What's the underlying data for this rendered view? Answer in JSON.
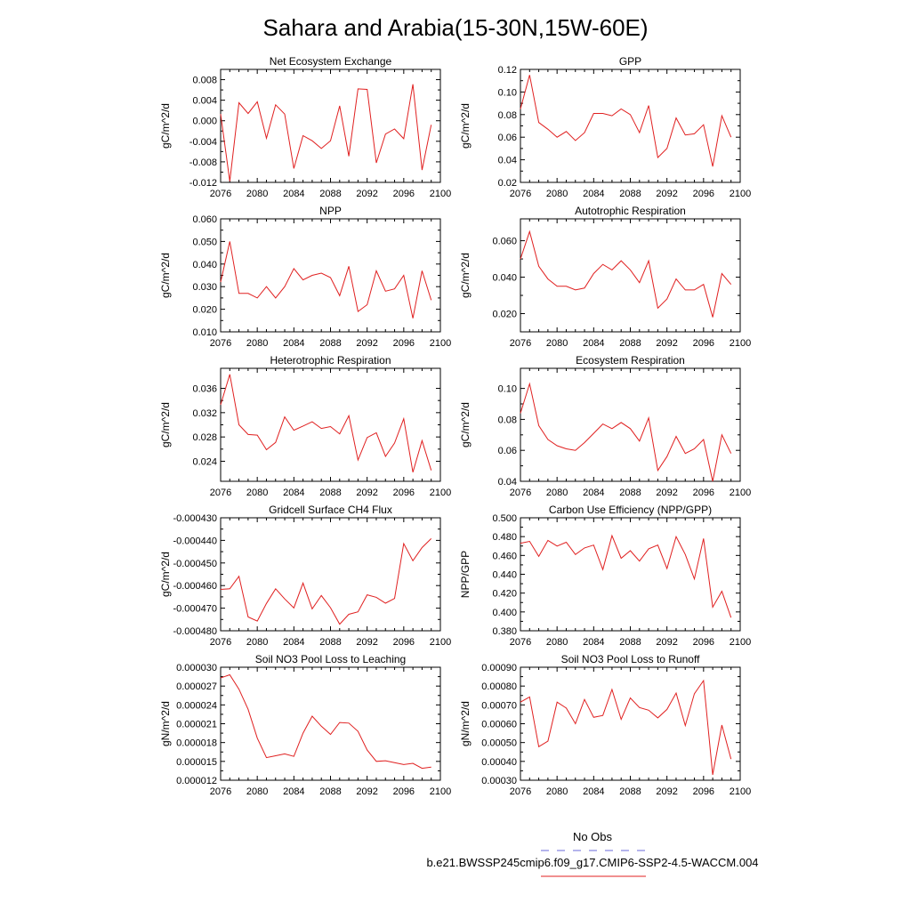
{
  "title": "Sahara and Arabia(15-30N,15W-60E)",
  "legend": {
    "obs_label": "No Obs",
    "obs_color": "#6a6ad8",
    "model_label": "b.e21.BWSSP245cmip6.f09_g17.CMIP6-SSP2-4.5-WACCM.004",
    "model_color": "#e02020"
  },
  "chart_data": [
    {
      "type": "line",
      "title": "Net Ecosystem Exchange",
      "ylabel": "gC/m^2/d",
      "xlim": [
        2076,
        2100
      ],
      "xticks": [
        "2076",
        "2080",
        "2084",
        "2088",
        "2092",
        "2096",
        "2100"
      ],
      "ylim": [
        -0.012,
        0.01
      ],
      "yticks": [
        "0.008",
        "0.004",
        "0.000",
        "-0.004",
        "-0.008",
        "-0.012"
      ],
      "series": [
        {
          "x": [
            2076,
            2077,
            2078,
            2079,
            2080,
            2081,
            2082,
            2083,
            2084,
            2085,
            2086,
            2087,
            2088,
            2089,
            2090,
            2091,
            2092,
            2093,
            2094,
            2095,
            2096,
            2097,
            2098,
            2099
          ],
          "y": [
            0.0013,
            -0.0118,
            0.0035,
            0.0014,
            0.0037,
            -0.0034,
            0.0031,
            0.0013,
            -0.0093,
            -0.0029,
            -0.0039,
            -0.0054,
            -0.0039,
            0.0029,
            -0.0069,
            0.0062,
            0.0061,
            -0.0082,
            -0.0026,
            -0.0016,
            -0.0035,
            0.0071,
            -0.0096,
            -0.0008
          ]
        }
      ]
    },
    {
      "type": "line",
      "title": "GPP",
      "ylabel": "gC/m^2/d",
      "xlim": [
        2076,
        2100
      ],
      "xticks": [
        "2076",
        "2080",
        "2084",
        "2088",
        "2092",
        "2096",
        "2100"
      ],
      "ylim": [
        0.02,
        0.12
      ],
      "yticks": [
        "0.12",
        "0.10",
        "0.08",
        "0.06",
        "0.04",
        "0.02"
      ],
      "series": [
        {
          "x": [
            2076,
            2077,
            2078,
            2079,
            2080,
            2081,
            2082,
            2083,
            2084,
            2085,
            2086,
            2087,
            2088,
            2089,
            2090,
            2091,
            2092,
            2093,
            2094,
            2095,
            2096,
            2097,
            2098,
            2099
          ],
          "y": [
            0.085,
            0.115,
            0.073,
            0.067,
            0.06,
            0.065,
            0.057,
            0.064,
            0.081,
            0.081,
            0.079,
            0.085,
            0.08,
            0.064,
            0.088,
            0.042,
            0.05,
            0.077,
            0.062,
            0.063,
            0.071,
            0.034,
            0.079,
            0.06
          ]
        }
      ]
    },
    {
      "type": "line",
      "title": "NPP",
      "ylabel": "gC/m^2/d",
      "xlim": [
        2076,
        2100
      ],
      "xticks": [
        "2076",
        "2080",
        "2084",
        "2088",
        "2092",
        "2096",
        "2100"
      ],
      "ylim": [
        0.01,
        0.06
      ],
      "yticks": [
        "0.060",
        "0.050",
        "0.040",
        "0.030",
        "0.020",
        "0.010"
      ],
      "series": [
        {
          "x": [
            2076,
            2077,
            2078,
            2079,
            2080,
            2081,
            2082,
            2083,
            2084,
            2085,
            2086,
            2087,
            2088,
            2089,
            2090,
            2091,
            2092,
            2093,
            2094,
            2095,
            2096,
            2097,
            2098,
            2099
          ],
          "y": [
            0.032,
            0.05,
            0.027,
            0.027,
            0.025,
            0.03,
            0.025,
            0.03,
            0.038,
            0.033,
            0.035,
            0.036,
            0.034,
            0.026,
            0.039,
            0.019,
            0.022,
            0.037,
            0.028,
            0.029,
            0.035,
            0.016,
            0.037,
            0.024
          ]
        }
      ]
    },
    {
      "type": "line",
      "title": "Autotrophic Respiration",
      "ylabel": "gC/m^2/d",
      "xlim": [
        2076,
        2100
      ],
      "xticks": [
        "2076",
        "2080",
        "2084",
        "2088",
        "2092",
        "2096",
        "2100"
      ],
      "ylim": [
        0.01,
        0.072
      ],
      "yticks": [
        "0.060",
        "0.040",
        "0.020"
      ],
      "series": [
        {
          "x": [
            2076,
            2077,
            2078,
            2079,
            2080,
            2081,
            2082,
            2083,
            2084,
            2085,
            2086,
            2087,
            2088,
            2089,
            2090,
            2091,
            2092,
            2093,
            2094,
            2095,
            2096,
            2097,
            2098,
            2099
          ],
          "y": [
            0.05,
            0.065,
            0.046,
            0.039,
            0.035,
            0.035,
            0.033,
            0.034,
            0.042,
            0.047,
            0.044,
            0.049,
            0.044,
            0.037,
            0.049,
            0.023,
            0.028,
            0.039,
            0.033,
            0.033,
            0.036,
            0.018,
            0.042,
            0.036
          ]
        }
      ]
    },
    {
      "type": "line",
      "title": "Heterotrophic Respiration",
      "ylabel": "gC/m^2/d",
      "xlim": [
        2076,
        2100
      ],
      "xticks": [
        "2076",
        "2080",
        "2084",
        "2088",
        "2092",
        "2096",
        "2100"
      ],
      "ylim": [
        0.0207,
        0.0393
      ],
      "yticks": [
        "0.036",
        "0.032",
        "0.028",
        "0.024"
      ],
      "series": [
        {
          "x": [
            2076,
            2077,
            2078,
            2079,
            2080,
            2081,
            2082,
            2083,
            2084,
            2085,
            2086,
            2087,
            2088,
            2089,
            2090,
            2091,
            2092,
            2093,
            2094,
            2095,
            2096,
            2097,
            2098,
            2099
          ],
          "y": [
            0.0333,
            0.0383,
            0.03,
            0.0284,
            0.0283,
            0.0259,
            0.0271,
            0.0313,
            0.0291,
            0.0298,
            0.0305,
            0.0294,
            0.0297,
            0.0285,
            0.0315,
            0.0242,
            0.0279,
            0.0287,
            0.0248,
            0.027,
            0.031,
            0.0222,
            0.0274,
            0.0225
          ]
        }
      ]
    },
    {
      "type": "line",
      "title": "Ecosystem Respiration",
      "ylabel": "gC/m^2/d",
      "xlim": [
        2076,
        2100
      ],
      "xticks": [
        "2076",
        "2080",
        "2084",
        "2088",
        "2092",
        "2096",
        "2100"
      ],
      "ylim": [
        0.04,
        0.113
      ],
      "yticks": [
        "0.10",
        "0.08",
        "0.06",
        "0.04"
      ],
      "series": [
        {
          "x": [
            2076,
            2077,
            2078,
            2079,
            2080,
            2081,
            2082,
            2083,
            2084,
            2085,
            2086,
            2087,
            2088,
            2089,
            2090,
            2091,
            2092,
            2093,
            2094,
            2095,
            2096,
            2097,
            2098,
            2099
          ],
          "y": [
            0.084,
            0.103,
            0.076,
            0.067,
            0.063,
            0.061,
            0.06,
            0.065,
            0.071,
            0.077,
            0.074,
            0.078,
            0.074,
            0.066,
            0.081,
            0.047,
            0.056,
            0.069,
            0.058,
            0.061,
            0.067,
            0.04,
            0.07,
            0.058
          ]
        }
      ]
    },
    {
      "type": "line",
      "title": "Gridcell Surface CH4 Flux",
      "ylabel": "gC/m^2/d",
      "xlim": [
        2076,
        2100
      ],
      "xticks": [
        "2076",
        "2080",
        "2084",
        "2088",
        "2092",
        "2096",
        "2100"
      ],
      "ylim": [
        -0.00048,
        -0.00043
      ],
      "yticks": [
        "-0.000430",
        "-0.000440",
        "-0.000450",
        "-0.000460",
        "-0.000470",
        "-0.000480"
      ],
      "series": [
        {
          "x": [
            2076,
            2077,
            2078,
            2079,
            2080,
            2081,
            2082,
            2083,
            2084,
            2085,
            2086,
            2087,
            2088,
            2089,
            2090,
            2091,
            2092,
            2093,
            2094,
            2095,
            2096,
            2097,
            2098,
            2099
          ],
          "y": [
            -0.0004617,
            -0.0004614,
            -0.0004559,
            -0.0004739,
            -0.0004757,
            -0.0004679,
            -0.0004614,
            -0.0004659,
            -0.0004699,
            -0.0004589,
            -0.0004703,
            -0.0004644,
            -0.0004698,
            -0.0004771,
            -0.0004727,
            -0.0004716,
            -0.0004641,
            -0.0004652,
            -0.0004678,
            -0.0004657,
            -0.0004414,
            -0.000449,
            -0.0004432,
            -0.0004392
          ]
        }
      ]
    },
    {
      "type": "line",
      "title": "Carbon Use Efficiency (NPP/GPP)",
      "ylabel": "NPP/GPP",
      "xlim": [
        2076,
        2100
      ],
      "xticks": [
        "2076",
        "2080",
        "2084",
        "2088",
        "2092",
        "2096",
        "2100"
      ],
      "ylim": [
        0.38,
        0.5
      ],
      "yticks": [
        "0.500",
        "0.480",
        "0.460",
        "0.440",
        "0.420",
        "0.400",
        "0.380"
      ],
      "series": [
        {
          "x": [
            2076,
            2077,
            2078,
            2079,
            2080,
            2081,
            2082,
            2083,
            2084,
            2085,
            2086,
            2087,
            2088,
            2089,
            2090,
            2091,
            2092,
            2093,
            2094,
            2095,
            2096,
            2097,
            2098,
            2099
          ],
          "y": [
            0.473,
            0.475,
            0.459,
            0.476,
            0.47,
            0.474,
            0.461,
            0.468,
            0.471,
            0.445,
            0.481,
            0.457,
            0.465,
            0.454,
            0.467,
            0.471,
            0.446,
            0.48,
            0.461,
            0.435,
            0.478,
            0.405,
            0.422,
            0.394
          ]
        }
      ]
    },
    {
      "type": "line",
      "title": "Soil NO3 Pool Loss to Leaching",
      "ylabel": "gN/m^2/d",
      "xlim": [
        2076,
        2100
      ],
      "xticks": [
        "2076",
        "2080",
        "2084",
        "2088",
        "2092",
        "2096",
        "2100"
      ],
      "ylim": [
        1.2e-05,
        3e-05
      ],
      "yticks": [
        "0.000030",
        "0.000027",
        "0.000024",
        "0.000021",
        "0.000018",
        "0.000015",
        "0.000012"
      ],
      "series": [
        {
          "x": [
            2076,
            2077,
            2078,
            2079,
            2080,
            2081,
            2082,
            2083,
            2084,
            2085,
            2086,
            2087,
            2088,
            2089,
            2090,
            2091,
            2092,
            2093,
            2094,
            2095,
            2096,
            2097,
            2098,
            2099
          ],
          "y": [
            2.83e-05,
            2.88e-05,
            2.65e-05,
            2.33e-05,
            1.87e-05,
            1.56e-05,
            1.59e-05,
            1.62e-05,
            1.58e-05,
            1.95e-05,
            2.22e-05,
            2.06e-05,
            1.93e-05,
            2.12e-05,
            2.11e-05,
            1.98e-05,
            1.68e-05,
            1.5e-05,
            1.51e-05,
            1.48e-05,
            1.45e-05,
            1.47e-05,
            1.39e-05,
            1.41e-05
          ]
        }
      ]
    },
    {
      "type": "line",
      "title": "Soil NO3 Pool Loss to Runoff",
      "ylabel": "gN/m^2/d",
      "xlim": [
        2076,
        2100
      ],
      "xticks": [
        "2076",
        "2080",
        "2084",
        "2088",
        "2092",
        "2096",
        "2100"
      ],
      "ylim": [
        0.0003,
        0.0009
      ],
      "yticks": [
        "0.00090",
        "0.00080",
        "0.00070",
        "0.00060",
        "0.00050",
        "0.00040",
        "0.00030"
      ],
      "series": [
        {
          "x": [
            2076,
            2077,
            2078,
            2079,
            2080,
            2081,
            2082,
            2083,
            2084,
            2085,
            2086,
            2087,
            2088,
            2089,
            2090,
            2091,
            2092,
            2093,
            2094,
            2095,
            2096,
            2097,
            2098,
            2099
          ],
          "y": [
            0.000715,
            0.000742,
            0.000478,
            0.000508,
            0.000715,
            0.000683,
            0.0006,
            0.000729,
            0.000634,
            0.000644,
            0.000782,
            0.000623,
            0.000737,
            0.000686,
            0.000672,
            0.000631,
            0.000676,
            0.000763,
            0.00059,
            0.000759,
            0.000829,
            0.000329,
            0.000593,
            0.000412
          ]
        }
      ]
    }
  ]
}
